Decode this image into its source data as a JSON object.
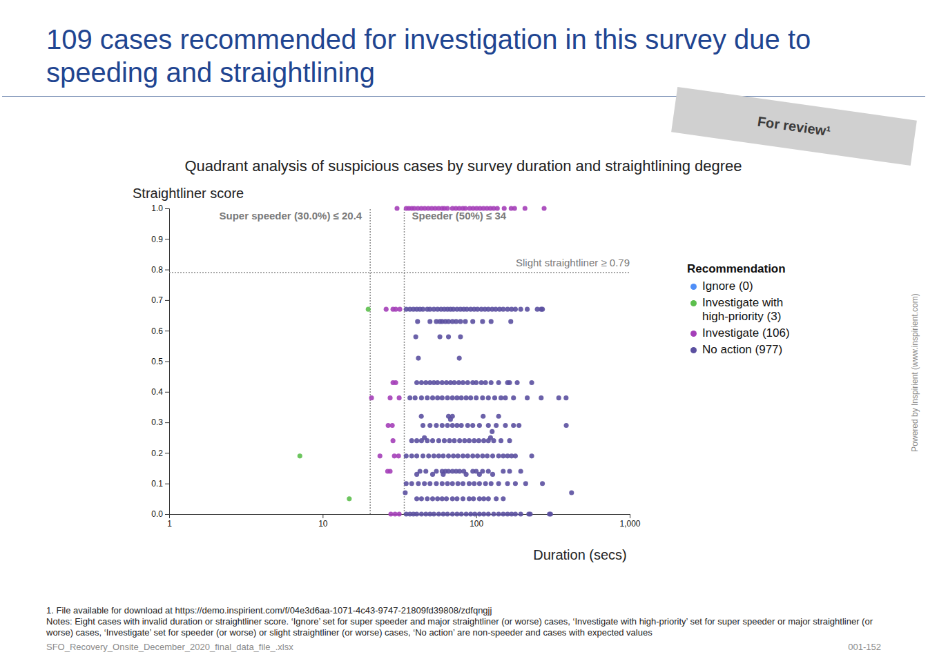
{
  "page": {
    "title": "109 cases recommended for investigation in this survey due to speeding and straightlining",
    "stamp": "For review¹",
    "footnote": "1. File available for download at https://demo.inspirient.com/f/04e3d6aa-1071-4c43-9747-21809fd39808/zdfqngjj",
    "notes": "Notes: Eight cases with invalid duration or straightliner score.   ‘Ignore’ set for super speeder and major straightliner (or worse) cases, ‘Investigate with high-priority’ set for super speeder or major straightliner (or worse) cases, ‘Investigate’ set for speeder (or worse) or slight straightliner (or worse) cases, ‘No action’ are non-speeder and cases with expected values",
    "file_name": "SFO_Recovery_Onsite_December_2020_final_data_file_.xlsx",
    "page_number": "001-152",
    "side_text": "Powered by Inspirient (www.inspirient.com)"
  },
  "chart_data": {
    "type": "scatter",
    "title": "Quadrant analysis of suspicious cases by survey duration and straightlining degree",
    "x_label": "Duration (secs)",
    "y_label": "Straightliner score",
    "log": "x",
    "grid": false,
    "legend": "right",
    "legend_title": "Recommendation",
    "marker": "circle",
    "xlim": [
      1,
      1000
    ],
    "ylim": [
      0,
      1
    ],
    "xticks": [
      1,
      10,
      100,
      {
        "value": 1000,
        "label": "1,000"
      }
    ],
    "yticks": [
      {
        "value": 0,
        "label": "0.0"
      },
      0.1,
      0.2,
      0.3,
      0.4,
      0.5,
      0.6,
      0.7,
      0.8,
      0.9,
      {
        "value": 1,
        "label": "1.0"
      }
    ],
    "annotations": [
      {
        "text": "Super speeder (30.0%) ≤ 20.4",
        "x": 20.4
      },
      {
        "text": "Speeder (50%) ≤ 34",
        "x": 34
      },
      {
        "text": "Slight straightliner ≥ 0.79",
        "y": 0.79
      }
    ],
    "series": [
      {
        "name": "Ignore (0)",
        "color": "#4f8ef7",
        "x": [],
        "values": []
      },
      {
        "name": "Investigate with high-priority (3)",
        "color": "#5cbf4d",
        "x": [
          19.8,
          7.1,
          14.9
        ],
        "values": [
          0.67,
          0.19,
          0.05
        ]
      },
      {
        "name": "Investigate (106)",
        "color": "#a43fb8",
        "x": [
          30.5,
          35,
          36.4,
          38,
          39.5,
          41.7,
          43.9,
          46.2,
          48.7,
          51.3,
          54,
          56.9,
          59.9,
          62,
          65,
          70,
          73.7,
          77.6,
          81.8,
          85,
          90.7,
          95.5,
          100.6,
          105.9,
          111.5,
          117.5,
          123.7,
          130,
          137.3,
          152.2,
          168.9,
          177.8,
          207.8,
          277,
          25.9,
          28.7,
          29.9,
          31.8,
          28.7,
          29.9,
          20.8,
          27.5,
          31.5,
          26.7,
          28.4,
          28.7,
          23.6,
          29.3,
          31.2,
          26.5,
          27.5,
          27.8,
          29.6,
          31.5
        ],
        "values": [
          1,
          1,
          1,
          1,
          1,
          1,
          1,
          1,
          1,
          1,
          1,
          1,
          1,
          1,
          1,
          1,
          1,
          1,
          1,
          1,
          1,
          1,
          1,
          1,
          1,
          1,
          1,
          1,
          1,
          1,
          1,
          1,
          1,
          1,
          0.67,
          0.67,
          0.67,
          0.67,
          0.43,
          0.43,
          0.38,
          0.38,
          0.38,
          0.29,
          0.29,
          0.24,
          0.19,
          0.19,
          0.19,
          0.14,
          0.14,
          0,
          0,
          0
        ]
      },
      {
        "name": "No action (977)",
        "color": "#5b50a0",
        "x": [
          35,
          37,
          39,
          41,
          43,
          45,
          48,
          50,
          53,
          56,
          59,
          62,
          65,
          68,
          71,
          75,
          79,
          83,
          87,
          92,
          97,
          102,
          108,
          114,
          120,
          127,
          134,
          142,
          150,
          160,
          170,
          180,
          195,
          215,
          250,
          265,
          270,
          41.5,
          50,
          55,
          58,
          60,
          63,
          66,
          70,
          74,
          79,
          85,
          95,
          110,
          125,
          168,
          40.4,
          58,
          66,
          79,
          42,
          77.6,
          41,
          44,
          47,
          50,
          53,
          56,
          60,
          64,
          68,
          72,
          77,
          82,
          88,
          95,
          100,
          108,
          115,
          125,
          140,
          160,
          165,
          185,
          230,
          37,
          40,
          44,
          48,
          52,
          56,
          60,
          65,
          70,
          75,
          80,
          86,
          92,
          100,
          110,
          120,
          132,
          145,
          155,
          175,
          215,
          265,
          345,
          385,
          43.9,
          66,
          70,
          111,
          140,
          68,
          45,
          50,
          55,
          60,
          65,
          70,
          75,
          80,
          88,
          95,
          105,
          120,
          135,
          155,
          175,
          190,
          386,
          127,
          46,
          124,
          38,
          41,
          44,
          48,
          52,
          57,
          62,
          67,
          72,
          78,
          84,
          90,
          97,
          104,
          112,
          120,
          130,
          145,
          165,
          35,
          38,
          41,
          45,
          49,
          53,
          57,
          61,
          66,
          71,
          76,
          82,
          88,
          95,
          102,
          110,
          118,
          128,
          140,
          150,
          160,
          170,
          180,
          230,
          43,
          47,
          55,
          60,
          63,
          66,
          70,
          74,
          78,
          83,
          95,
          100,
          110,
          120,
          150,
          165,
          195,
          41,
          52,
          61,
          86,
          105,
          128,
          35,
          38,
          42,
          46,
          50,
          55,
          60,
          65,
          70,
          76,
          82,
          90,
          97,
          105,
          115,
          125,
          140,
          160,
          180,
          210,
          270,
          34.5,
          418,
          41,
          44,
          48,
          52,
          56,
          60,
          64,
          70,
          75,
          82,
          90,
          96,
          105,
          112,
          120,
          135,
          150,
          35,
          37,
          39,
          41,
          44,
          47,
          50,
          53,
          57,
          61,
          65,
          70,
          75,
          80,
          86,
          92,
          98,
          105,
          112,
          120,
          130,
          140,
          150,
          160,
          170,
          180,
          195,
          220,
          225,
          300,
          305
        ],
        "values": [
          0.67,
          0.67,
          0.67,
          0.67,
          0.67,
          0.67,
          0.67,
          0.67,
          0.67,
          0.67,
          0.67,
          0.67,
          0.67,
          0.67,
          0.67,
          0.67,
          0.67,
          0.67,
          0.67,
          0.67,
          0.67,
          0.67,
          0.67,
          0.67,
          0.67,
          0.67,
          0.67,
          0.67,
          0.67,
          0.67,
          0.67,
          0.67,
          0.67,
          0.67,
          0.67,
          0.67,
          0.67,
          0.63,
          0.63,
          0.63,
          0.63,
          0.63,
          0.63,
          0.63,
          0.63,
          0.63,
          0.63,
          0.63,
          0.63,
          0.63,
          0.63,
          0.63,
          0.58,
          0.58,
          0.58,
          0.58,
          0.51,
          0.51,
          0.43,
          0.43,
          0.43,
          0.43,
          0.43,
          0.43,
          0.43,
          0.43,
          0.43,
          0.43,
          0.43,
          0.43,
          0.43,
          0.43,
          0.43,
          0.43,
          0.43,
          0.43,
          0.43,
          0.43,
          0.43,
          0.43,
          0.43,
          0.38,
          0.38,
          0.38,
          0.38,
          0.38,
          0.38,
          0.38,
          0.38,
          0.38,
          0.38,
          0.38,
          0.38,
          0.38,
          0.38,
          0.38,
          0.38,
          0.38,
          0.38,
          0.38,
          0.38,
          0.38,
          0.38,
          0.38,
          0.38,
          0.32,
          0.32,
          0.32,
          0.32,
          0.32,
          0.31,
          0.29,
          0.29,
          0.29,
          0.29,
          0.29,
          0.29,
          0.29,
          0.29,
          0.29,
          0.29,
          0.29,
          0.29,
          0.29,
          0.29,
          0.29,
          0.29,
          0.29,
          0.27,
          0.25,
          0.25,
          0.24,
          0.24,
          0.24,
          0.24,
          0.24,
          0.24,
          0.24,
          0.24,
          0.24,
          0.24,
          0.24,
          0.24,
          0.24,
          0.24,
          0.24,
          0.24,
          0.24,
          0.24,
          0.24,
          0.19,
          0.19,
          0.19,
          0.19,
          0.19,
          0.19,
          0.19,
          0.19,
          0.19,
          0.19,
          0.19,
          0.19,
          0.19,
          0.19,
          0.19,
          0.19,
          0.19,
          0.19,
          0.19,
          0.19,
          0.19,
          0.19,
          0.19,
          0.19,
          0.14,
          0.14,
          0.14,
          0.14,
          0.14,
          0.14,
          0.14,
          0.14,
          0.14,
          0.14,
          0.14,
          0.14,
          0.14,
          0.14,
          0.14,
          0.14,
          0.14,
          0.13,
          0.13,
          0.13,
          0.13,
          0.13,
          0.13,
          0.1,
          0.1,
          0.1,
          0.1,
          0.1,
          0.1,
          0.1,
          0.1,
          0.1,
          0.1,
          0.1,
          0.1,
          0.1,
          0.1,
          0.1,
          0.1,
          0.1,
          0.1,
          0.1,
          0.1,
          0.1,
          0.07,
          0.07,
          0.05,
          0.05,
          0.05,
          0.05,
          0.05,
          0.05,
          0.05,
          0.05,
          0.05,
          0.05,
          0.05,
          0.05,
          0.05,
          0.05,
          0.05,
          0.05,
          0.05,
          0,
          0,
          0,
          0,
          0,
          0,
          0,
          0,
          0,
          0,
          0,
          0,
          0,
          0,
          0,
          0,
          0,
          0,
          0,
          0,
          0,
          0,
          0,
          0,
          0,
          0,
          0,
          0,
          0,
          0,
          0
        ]
      }
    ]
  }
}
